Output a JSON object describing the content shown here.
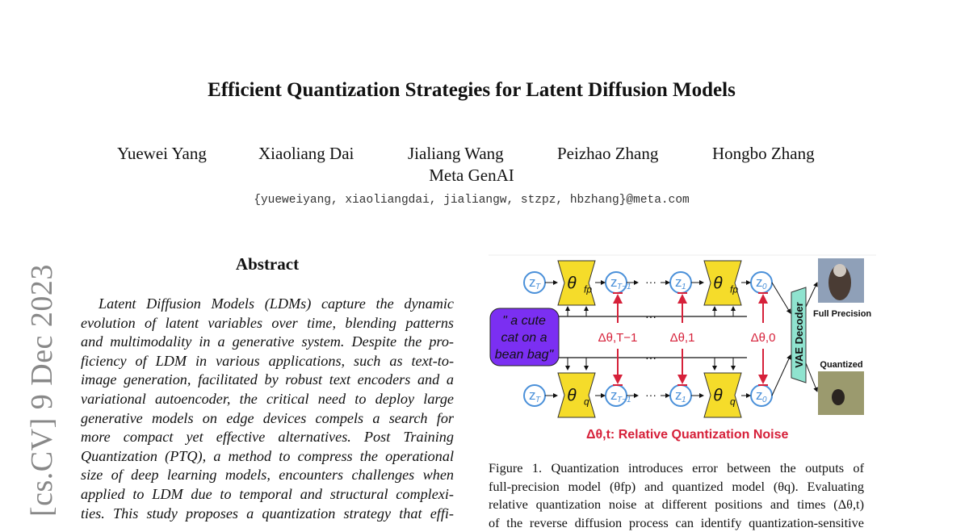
{
  "paper": {
    "title": "Efficient Quantization Strategies for Latent Diffusion Models",
    "authors": [
      "Yuewei Yang",
      "Xiaoliang Dai",
      "Jialiang Wang",
      "Peizhao Zhang",
      "Hongbo Zhang"
    ],
    "affiliation": "Meta GenAI",
    "email": "{yueweiyang, xiaoliangdai, jialiangw, stzpz, hbzhang}@meta.com",
    "arxiv_stamp": "[cs.CV]  9 Dec 2023"
  },
  "abstract": {
    "heading": "Abstract",
    "lines": [
      "Latent Diffusion Models (LDMs) capture the dynamic",
      "evolution of latent variables over time, blending patterns",
      "and multimodality in a generative system. Despite the pro-",
      "ficiency of LDM in various applications, such as text-to-",
      "image generation, facilitated by robust text encoders and a",
      "variational autoencoder, the critical need to deploy large",
      "generative models on edge devices compels a search for",
      "more compact yet effective alternatives.  Post Training",
      "Quantization (PTQ), a method to compress the operational",
      "size of deep learning models, encounters challenges when",
      "applied to LDM due to temporal and structural complexi-",
      "ties. This study proposes a quantization strategy that effi-"
    ]
  },
  "figure": {
    "prompt": [
      "\" a cute",
      "cat on a",
      "bean bag\""
    ],
    "top_nodes": [
      "z",
      "z",
      "z",
      "z"
    ],
    "top_subs": [
      "T",
      "T−1",
      "1",
      "0"
    ],
    "bottom_subs": [
      "T",
      "T−1",
      "1",
      "0"
    ],
    "model_fp": "θ",
    "model_fp_sub": "fp",
    "model_q": "θ",
    "model_q_sub": "q",
    "ellipsis": "···",
    "deltas": [
      "Δθ,T−1",
      "Δθ,1",
      "Δθ,0"
    ],
    "decoder": "VAE Decoder",
    "full_precision_label": "Full Precision",
    "quantized_label": "Quantized",
    "legend": "Δθ,t: Relative Quantization Noise",
    "colors": {
      "model": "#f5dc2a",
      "prompt": "#7b2ff2",
      "node": "#4a90d9",
      "noise": "#d6213a",
      "decoder": "#8fe3cf"
    }
  },
  "caption": {
    "lines": [
      "Figure 1.  Quantization introduces error between the outputs of",
      "full-precision model (θfp) and quantized model (θq).  Evaluating",
      "relative quantization noise at different positions and times (Δθ,t)",
      "of the reverse diffusion process can identify quantization-sensitive"
    ]
  }
}
